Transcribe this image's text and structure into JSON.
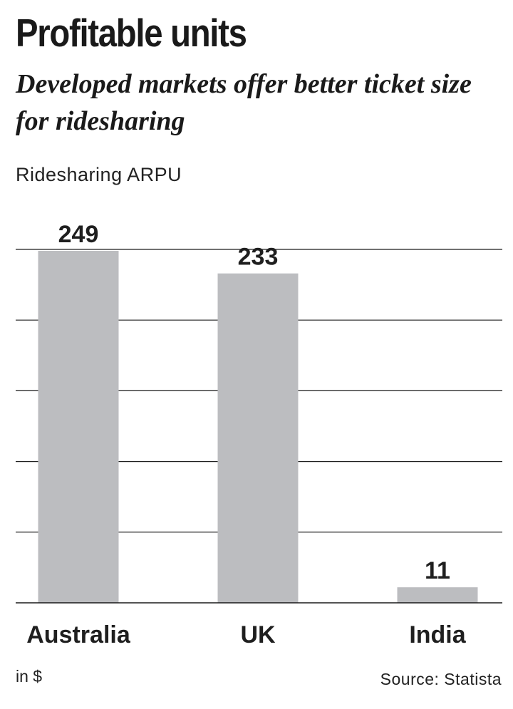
{
  "chart_data": {
    "type": "bar",
    "title": "Profitable units",
    "subtitle": "Developed markets offer better ticket size for ridesharing",
    "measure_label": "Ridesharing  ARPU",
    "unit_label": "in $",
    "source": "Source: Statista",
    "categories": [
      "Australia",
      "UK",
      "India"
    ],
    "values": [
      249,
      233,
      11
    ],
    "ylim": [
      0,
      250
    ],
    "grid": true,
    "colors": {
      "bar": "#bcbdc0",
      "grid": "#1a1a1a",
      "text": "#1f1f1f"
    }
  }
}
